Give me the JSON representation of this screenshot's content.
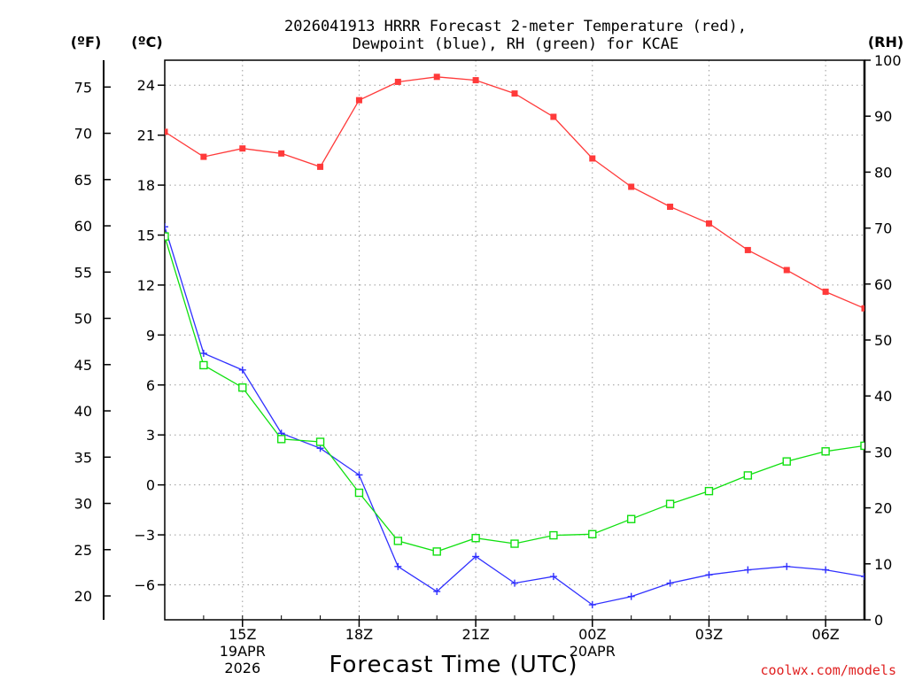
{
  "chart_data": {
    "type": "line",
    "title_line1": "2026041913 HRRR Forecast 2-meter Temperature (red),",
    "title_line2": "Dewpoint (blue), RH (green) for KCAE",
    "xlabel": "Forecast Time (UTC)",
    "credit": "coolwx.com/models",
    "unit_f": "(ºF)",
    "unit_c": "(ºC)",
    "unit_rh": "(RH)",
    "hours": [
      13,
      14,
      15,
      16,
      17,
      18,
      19,
      20,
      21,
      22,
      23,
      24,
      25,
      26,
      27,
      28,
      29,
      30,
      31
    ],
    "xlim": [
      13,
      31
    ],
    "x_ticks": [
      {
        "hour": 15,
        "label": "15Z",
        "sub1": "19APR",
        "sub2": "2026"
      },
      {
        "hour": 18,
        "label": "18Z",
        "sub1": "",
        "sub2": ""
      },
      {
        "hour": 21,
        "label": "21Z",
        "sub1": "",
        "sub2": ""
      },
      {
        "hour": 24,
        "label": "00Z",
        "sub1": "20APR",
        "sub2": ""
      },
      {
        "hour": 27,
        "label": "03Z",
        "sub1": "",
        "sub2": ""
      },
      {
        "hour": 30,
        "label": "06Z",
        "sub1": "",
        "sub2": ""
      }
    ],
    "c_ticks": [
      24,
      21,
      18,
      15,
      12,
      9,
      6,
      3,
      0,
      -3,
      -6
    ],
    "c_tick_labels": [
      "24",
      "21",
      "18",
      "15",
      "12",
      "9",
      "6",
      "3",
      "0",
      "−3",
      "−6"
    ],
    "f_ticks": [
      75,
      70,
      65,
      60,
      55,
      50,
      45,
      40,
      35,
      30,
      25,
      20
    ],
    "rh_ticks": [
      100,
      90,
      80,
      70,
      60,
      50,
      40,
      30,
      20,
      10,
      0
    ],
    "c_range": [
      -8.1,
      25.5
    ],
    "rh_range": [
      0,
      100
    ],
    "series": [
      {
        "name": "Temperature",
        "color": "#ff3a3a",
        "axis": "c",
        "marker": "filled-square",
        "values": [
          21.2,
          19.7,
          20.2,
          19.9,
          19.1,
          23.1,
          24.2,
          24.5,
          24.3,
          23.5,
          22.1,
          19.6,
          17.9,
          16.7,
          15.7,
          14.1,
          12.9,
          11.6,
          10.6
        ]
      },
      {
        "name": "Dewpoint",
        "color": "#3030ff",
        "axis": "c",
        "marker": "plus",
        "values": [
          15.5,
          7.9,
          6.9,
          3.1,
          2.2,
          0.6,
          -4.9,
          -6.4,
          -4.3,
          -5.9,
          -5.5,
          -7.2,
          -6.7,
          -5.9,
          -5.4,
          -5.1,
          -4.9,
          -5.1,
          -5.5
        ]
      },
      {
        "name": "Relative Humidity",
        "color": "#10e010",
        "axis": "rh",
        "marker": "open-square",
        "values": [
          68.5,
          45.5,
          41.5,
          32.3,
          31.8,
          22.7,
          14.1,
          12.2,
          14.6,
          13.6,
          15.1,
          15.3,
          18.0,
          20.7,
          23.0,
          25.8,
          28.3,
          30.1,
          31.1
        ]
      }
    ]
  }
}
